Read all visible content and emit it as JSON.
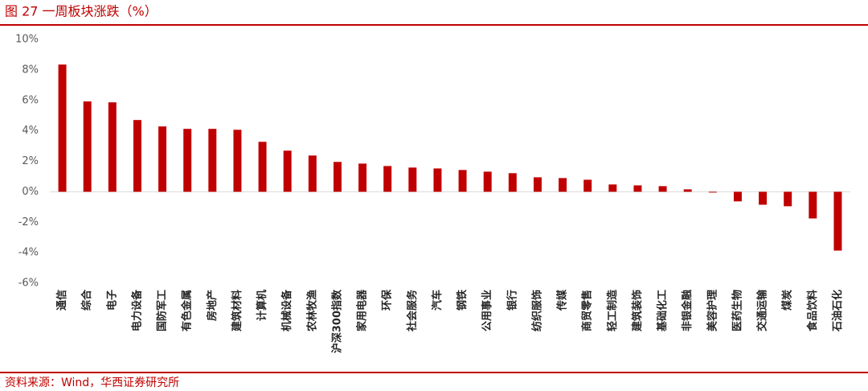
{
  "chart_data": {
    "type": "bar",
    "title": "图 27 一周板块涨跌（%）",
    "source": "资料来源：Wind，华西证券研究所",
    "categories": [
      "通信",
      "综合",
      "电子",
      "电力设备",
      "国防军工",
      "有色金属",
      "房地产",
      "建筑材料",
      "计算机",
      "机械设备",
      "农林牧渔",
      "沪深300指数",
      "家用电器",
      "环保",
      "社会服务",
      "汽车",
      "钢铁",
      "公用事业",
      "银行",
      "纺织服饰",
      "传媒",
      "商贸零售",
      "轻工制造",
      "建筑装饰",
      "基础化工",
      "非银金融",
      "美容护理",
      "医药生物",
      "交通运输",
      "煤炭",
      "食品饮料",
      "石油石化"
    ],
    "values": [
      8.35,
      5.93,
      5.87,
      4.71,
      4.29,
      4.13,
      4.13,
      4.07,
      3.28,
      2.7,
      2.38,
      1.96,
      1.85,
      1.69,
      1.59,
      1.53,
      1.43,
      1.32,
      1.22,
      0.95,
      0.9,
      0.79,
      0.48,
      0.42,
      0.37,
      0.16,
      -0.05,
      -0.63,
      -0.85,
      -0.95,
      -1.75,
      -3.86
    ],
    "color": "#c00000",
    "ylim": [
      -6,
      10
    ],
    "yticks": [
      {
        "value": -6,
        "label": "-6%"
      },
      {
        "value": -4,
        "label": "-4%"
      },
      {
        "value": -2,
        "label": "-2%"
      },
      {
        "value": 0,
        "label": "0%"
      },
      {
        "value": 2,
        "label": "2%"
      },
      {
        "value": 4,
        "label": "4%"
      },
      {
        "value": 6,
        "label": "6%"
      },
      {
        "value": 8,
        "label": "8%"
      },
      {
        "value": 10,
        "label": "10%"
      }
    ],
    "grid": false
  }
}
